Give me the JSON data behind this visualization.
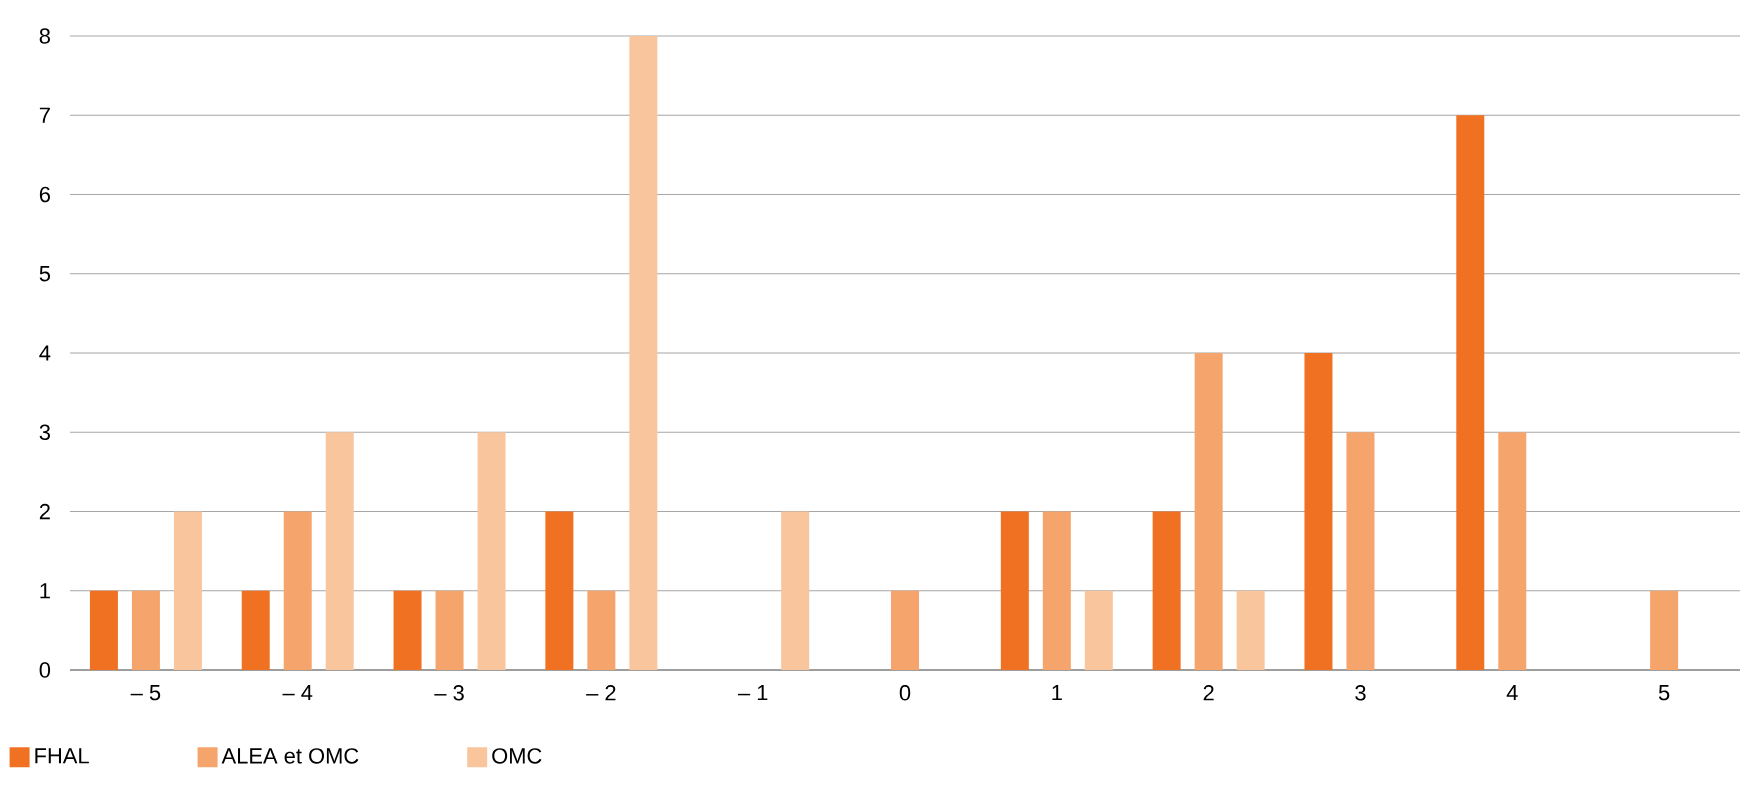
{
  "chart_data": {
    "type": "bar",
    "categories": [
      "– 5",
      "– 4",
      "– 3",
      "– 2",
      "– 1",
      "0",
      "1",
      "2",
      "3",
      "4",
      "5"
    ],
    "series": [
      {
        "name": "FHAL",
        "color": "#f07122",
        "values": [
          1,
          1,
          1,
          2,
          0,
          0,
          2,
          2,
          4,
          7,
          0
        ]
      },
      {
        "name": "ALEA et OMC",
        "color": "#f5a46c",
        "values": [
          1,
          2,
          1,
          1,
          0,
          1,
          2,
          4,
          3,
          3,
          1
        ]
      },
      {
        "name": "OMC",
        "color": "#f9c59c",
        "values": [
          2,
          3,
          3,
          8,
          2,
          0,
          1,
          1,
          0,
          0,
          0
        ]
      }
    ],
    "ylim": [
      0,
      8
    ],
    "yticks": [
      0,
      1,
      2,
      3,
      4,
      5,
      6,
      7,
      8
    ],
    "grid": "y",
    "legend": "bottom left"
  }
}
